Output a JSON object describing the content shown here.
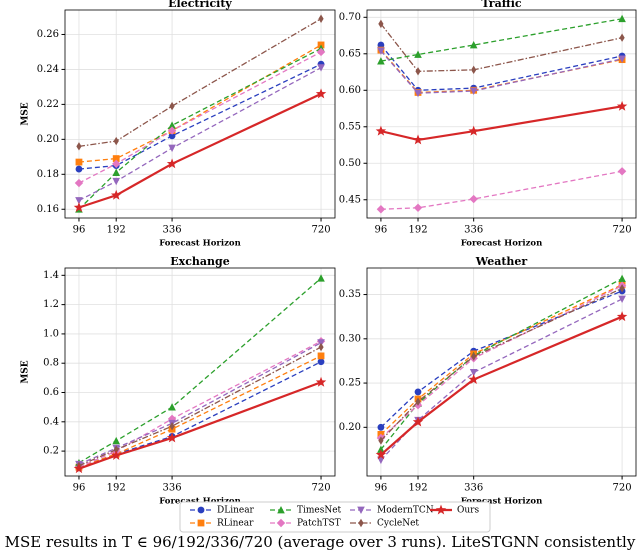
{
  "chart_data": [
    {
      "type": "line",
      "title": "Electricity",
      "xlabel": "Forecast Horizon",
      "ylabel": "MSE",
      "x": [
        96,
        192,
        336,
        720
      ],
      "xlim": [
        60,
        756
      ],
      "xticks": [
        96,
        192,
        336,
        720
      ],
      "ylim": [
        0.155,
        0.274
      ],
      "yticks": [
        0.16,
        0.18,
        {
          "value": 0.2,
          "label": "0.20"
        },
        0.22,
        0.24,
        0.26
      ],
      "grid": true,
      "series": [
        {
          "name": "DLinear",
          "color": "#2a3fbf",
          "marker": "circle",
          "linestyle": "dashed",
          "values": [
            0.183,
            0.185,
            0.202,
            0.243
          ]
        },
        {
          "name": "RLinear",
          "color": "#ff7f0e",
          "marker": "square",
          "linestyle": "dashed",
          "values": [
            0.187,
            0.189,
            0.205,
            0.254
          ]
        },
        {
          "name": "TimesNet",
          "color": "#2ca02c",
          "marker": "triangle-up",
          "linestyle": "dashed",
          "values": [
            0.16,
            0.181,
            0.208,
            0.252
          ]
        },
        {
          "name": "PatchTST",
          "color": "#e377c2",
          "marker": "diamond",
          "linestyle": "dashed",
          "values": [
            0.175,
            0.186,
            0.205,
            0.25
          ]
        },
        {
          "name": "ModernTCN",
          "color": "#9467bd",
          "marker": "triangle-down",
          "linestyle": "dashed",
          "values": [
            0.165,
            0.176,
            0.195,
            0.241
          ]
        },
        {
          "name": "CycleNet",
          "color": "#8c564b",
          "marker": "thin-diamond",
          "linestyle": "dashdot",
          "values": [
            0.196,
            0.199,
            0.219,
            0.269
          ]
        },
        {
          "name": "Ours",
          "color": "#d62728",
          "marker": "star",
          "linestyle": "solid",
          "values": [
            0.161,
            0.168,
            0.186,
            0.226
          ]
        }
      ]
    },
    {
      "type": "line",
      "title": "Traffic",
      "xlabel": "Forecast Horizon",
      "x": [
        96,
        192,
        336,
        720
      ],
      "xlim": [
        60,
        756
      ],
      "xticks": [
        96,
        192,
        336,
        720
      ],
      "ylim": [
        0.425,
        0.71
      ],
      "yticks": [
        0.45,
        {
          "value": 0.5,
          "label": "0.50"
        },
        0.55,
        {
          "value": 0.6,
          "label": "0.60"
        },
        0.65,
        {
          "value": 0.7,
          "label": "0.70"
        }
      ],
      "grid": true,
      "series": [
        {
          "name": "DLinear",
          "color": "#2a3fbf",
          "marker": "circle",
          "linestyle": "dashed",
          "values": [
            0.662,
            0.6,
            0.603,
            0.647
          ]
        },
        {
          "name": "RLinear",
          "color": "#ff7f0e",
          "marker": "square",
          "linestyle": "dashed",
          "values": [
            0.655,
            0.597,
            0.6,
            0.642
          ]
        },
        {
          "name": "TimesNet",
          "color": "#2ca02c",
          "marker": "triangle-up",
          "linestyle": "dashed",
          "values": [
            0.64,
            0.649,
            0.662,
            0.698
          ]
        },
        {
          "name": "PatchTST",
          "color": "#e377c2",
          "marker": "diamond",
          "linestyle": "dashed",
          "values": [
            0.437,
            0.439,
            0.451,
            0.489
          ]
        },
        {
          "name": "ModernTCN",
          "color": "#9467bd",
          "marker": "triangle-down",
          "linestyle": "dashed",
          "values": [
            0.654,
            0.596,
            0.599,
            0.643
          ]
        },
        {
          "name": "CycleNet",
          "color": "#8c564b",
          "marker": "thin-diamond",
          "linestyle": "dashdot",
          "values": [
            0.691,
            0.626,
            0.628,
            0.672
          ]
        },
        {
          "name": "Ours",
          "color": "#d62728",
          "marker": "star",
          "linestyle": "solid",
          "values": [
            0.544,
            0.532,
            0.544,
            0.578
          ]
        }
      ]
    },
    {
      "type": "line",
      "title": "Exchange",
      "xlabel": "Forecast Horizon",
      "ylabel": "MSE",
      "x": [
        96,
        192,
        336,
        720
      ],
      "xlim": [
        60,
        756
      ],
      "xticks": [
        96,
        192,
        336,
        720
      ],
      "ylim": [
        0.03,
        1.45
      ],
      "yticks": [
        0.2,
        0.4,
        0.6,
        0.8,
        {
          "value": 1,
          "label": "1.0"
        },
        1.2,
        1.4
      ],
      "grid": true,
      "series": [
        {
          "name": "DLinear",
          "color": "#2a3fbf",
          "marker": "circle",
          "linestyle": "dashed",
          "values": [
            0.09,
            0.18,
            0.3,
            0.81
          ]
        },
        {
          "name": "RLinear",
          "color": "#ff7f0e",
          "marker": "square",
          "linestyle": "dashed",
          "values": [
            0.09,
            0.18,
            0.35,
            0.85
          ]
        },
        {
          "name": "TimesNet",
          "color": "#2ca02c",
          "marker": "triangle-up",
          "linestyle": "dashed",
          "values": [
            0.12,
            0.27,
            0.5,
            1.38
          ]
        },
        {
          "name": "PatchTST",
          "color": "#e377c2",
          "marker": "diamond",
          "linestyle": "dashed",
          "values": [
            0.09,
            0.2,
            0.42,
            0.95
          ]
        },
        {
          "name": "ModernTCN",
          "color": "#9467bd",
          "marker": "triangle-down",
          "linestyle": "dashed",
          "values": [
            0.11,
            0.22,
            0.39,
            0.94
          ]
        },
        {
          "name": "CycleNet",
          "color": "#8c564b",
          "marker": "thin-diamond",
          "linestyle": "dashdot",
          "values": [
            0.1,
            0.21,
            0.37,
            0.91
          ]
        },
        {
          "name": "Ours",
          "color": "#d62728",
          "marker": "star",
          "linestyle": "solid",
          "values": [
            0.08,
            0.17,
            0.29,
            0.67
          ]
        }
      ]
    },
    {
      "type": "line",
      "title": "Weather",
      "xlabel": "Forecast Horizon",
      "x": [
        96,
        192,
        336,
        720
      ],
      "xlim": [
        60,
        756
      ],
      "xticks": [
        96,
        192,
        336,
        720
      ],
      "ylim": [
        0.145,
        0.38
      ],
      "yticks": [
        {
          "value": 0.2,
          "label": "0.20"
        },
        0.25,
        {
          "value": 0.3,
          "label": "0.30"
        },
        0.35
      ],
      "grid": true,
      "series": [
        {
          "name": "DLinear",
          "color": "#2a3fbf",
          "marker": "circle",
          "linestyle": "dashed",
          "values": [
            0.2,
            0.24,
            0.286,
            0.354
          ]
        },
        {
          "name": "RLinear",
          "color": "#ff7f0e",
          "marker": "square",
          "linestyle": "dashed",
          "values": [
            0.192,
            0.232,
            0.283,
            0.361
          ]
        },
        {
          "name": "TimesNet",
          "color": "#2ca02c",
          "marker": "triangle-up",
          "linestyle": "dashed",
          "values": [
            0.175,
            0.227,
            0.281,
            0.368
          ]
        },
        {
          "name": "PatchTST",
          "color": "#e377c2",
          "marker": "diamond",
          "linestyle": "dashed",
          "values": [
            0.188,
            0.225,
            0.278,
            0.36
          ]
        },
        {
          "name": "ModernTCN",
          "color": "#9467bd",
          "marker": "triangle-down",
          "linestyle": "dashed",
          "values": [
            0.163,
            0.208,
            0.262,
            0.345
          ]
        },
        {
          "name": "CycleNet",
          "color": "#8c564b",
          "marker": "thin-diamond",
          "linestyle": "dashdot",
          "values": [
            0.185,
            0.229,
            0.28,
            0.357
          ]
        },
        {
          "name": "Ours",
          "color": "#d62728",
          "marker": "star",
          "linestyle": "solid",
          "values": [
            0.169,
            0.206,
            0.254,
            0.325
          ]
        }
      ]
    }
  ],
  "caption": "MSE results in T ∈ 96/192/336/720 (average over 3 runs). LiteSTGNN consistently"
}
